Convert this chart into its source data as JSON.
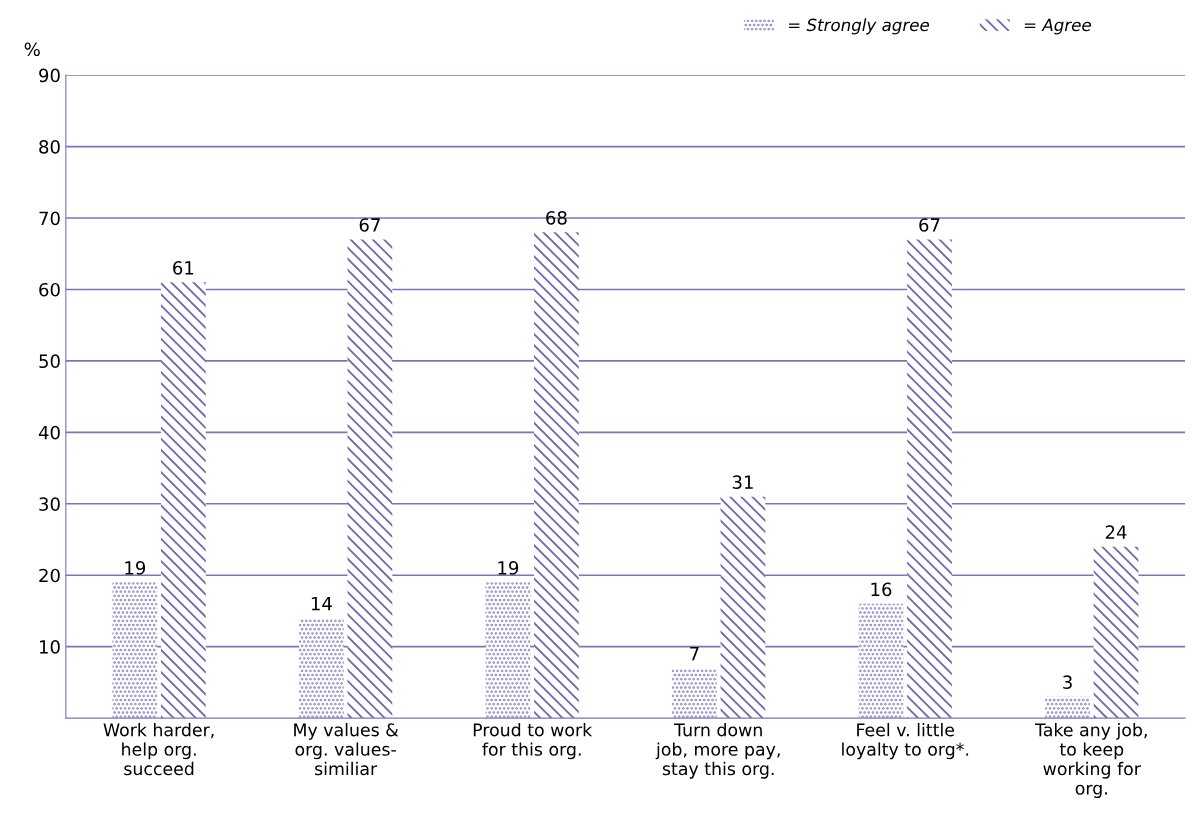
{
  "chart_data": {
    "type": "bar",
    "ylabel": "%",
    "categories": [
      "Work harder,\nhelp org.\nsucceed",
      "My values &\norg. values-\nsimiliar",
      "Proud to work\nfor this org.",
      "Turn down\njob, more pay,\nstay this org.",
      "Feel v. little\nloyalty to org*.",
      "Take any job,\nto keep\nworking for\norg."
    ],
    "series": [
      {
        "name": "= Strongly agree",
        "color": "#8c86c6",
        "values": [
          19,
          14,
          19,
          7,
          16,
          3
        ]
      },
      {
        "name": "= Agree",
        "color": "#6e68b0",
        "values": [
          61,
          67,
          68,
          31,
          67,
          24
        ]
      }
    ],
    "ylim": [
      0,
      90
    ],
    "yticks": [
      10,
      20,
      30,
      40,
      50,
      60,
      70,
      80,
      90
    ],
    "grid": "y",
    "legend": "top right",
    "data_labels": true
  }
}
